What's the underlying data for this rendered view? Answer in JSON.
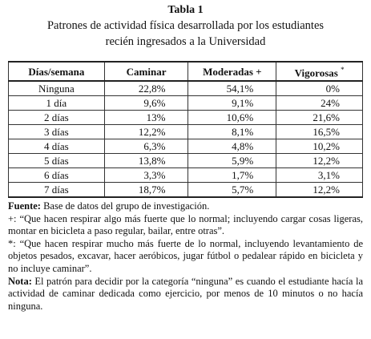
{
  "header": {
    "title": "Tabla 1",
    "caption_lines": [
      "Patrones de actividad física desarrollada por los estudiantes",
      "recién ingresados a la Universidad"
    ]
  },
  "table": {
    "columns": [
      "Días/semana",
      "Caminar",
      "Moderadas +",
      "Vigorosas"
    ],
    "columns_mark": "*",
    "rows": [
      [
        "Ninguna",
        "22,8%",
        "54,1%",
        "0%"
      ],
      [
        "1 día",
        "9,6%",
        "9,1%",
        "24%"
      ],
      [
        "2 días",
        "13%",
        "10,6%",
        "21,6%"
      ],
      [
        "3 días",
        "12,2%",
        "8,1%",
        "16,5%"
      ],
      [
        "4 días",
        "6,3%",
        "4,8%",
        "10,2%"
      ],
      [
        "5 días",
        "13,8%",
        "5,9%",
        "12,2%"
      ],
      [
        "6 días",
        "3,3%",
        "1,7%",
        "3,1%"
      ],
      [
        "7 días",
        "18,7%",
        "5,7%",
        "12,2%"
      ]
    ]
  },
  "notes": [
    {
      "label": "Fuente:",
      "text": "Base de datos del grupo de investigación."
    },
    {
      "label": "+:",
      "text": "“Que hacen respirar algo más fuerte que lo normal; incluyendo cargar cosas ligeras, montar en bicicleta a paso regular, bailar, entre otras”."
    },
    {
      "label": "*:",
      "text": "“Que hacen respirar mucho más fuerte de lo normal, incluyendo levantamiento de objetos pesados, excavar, hacer aeróbicos, jugar fútbol o pedalear rápido en bicicleta y no incluye caminar”."
    },
    {
      "label": "Nota:",
      "text": "El patrón para decidir por la categoría “ninguna” es cuando el estudiante hacía la actividad de caminar dedicada como ejercicio, por menos de 10 minutos o no hacía ninguna."
    }
  ]
}
